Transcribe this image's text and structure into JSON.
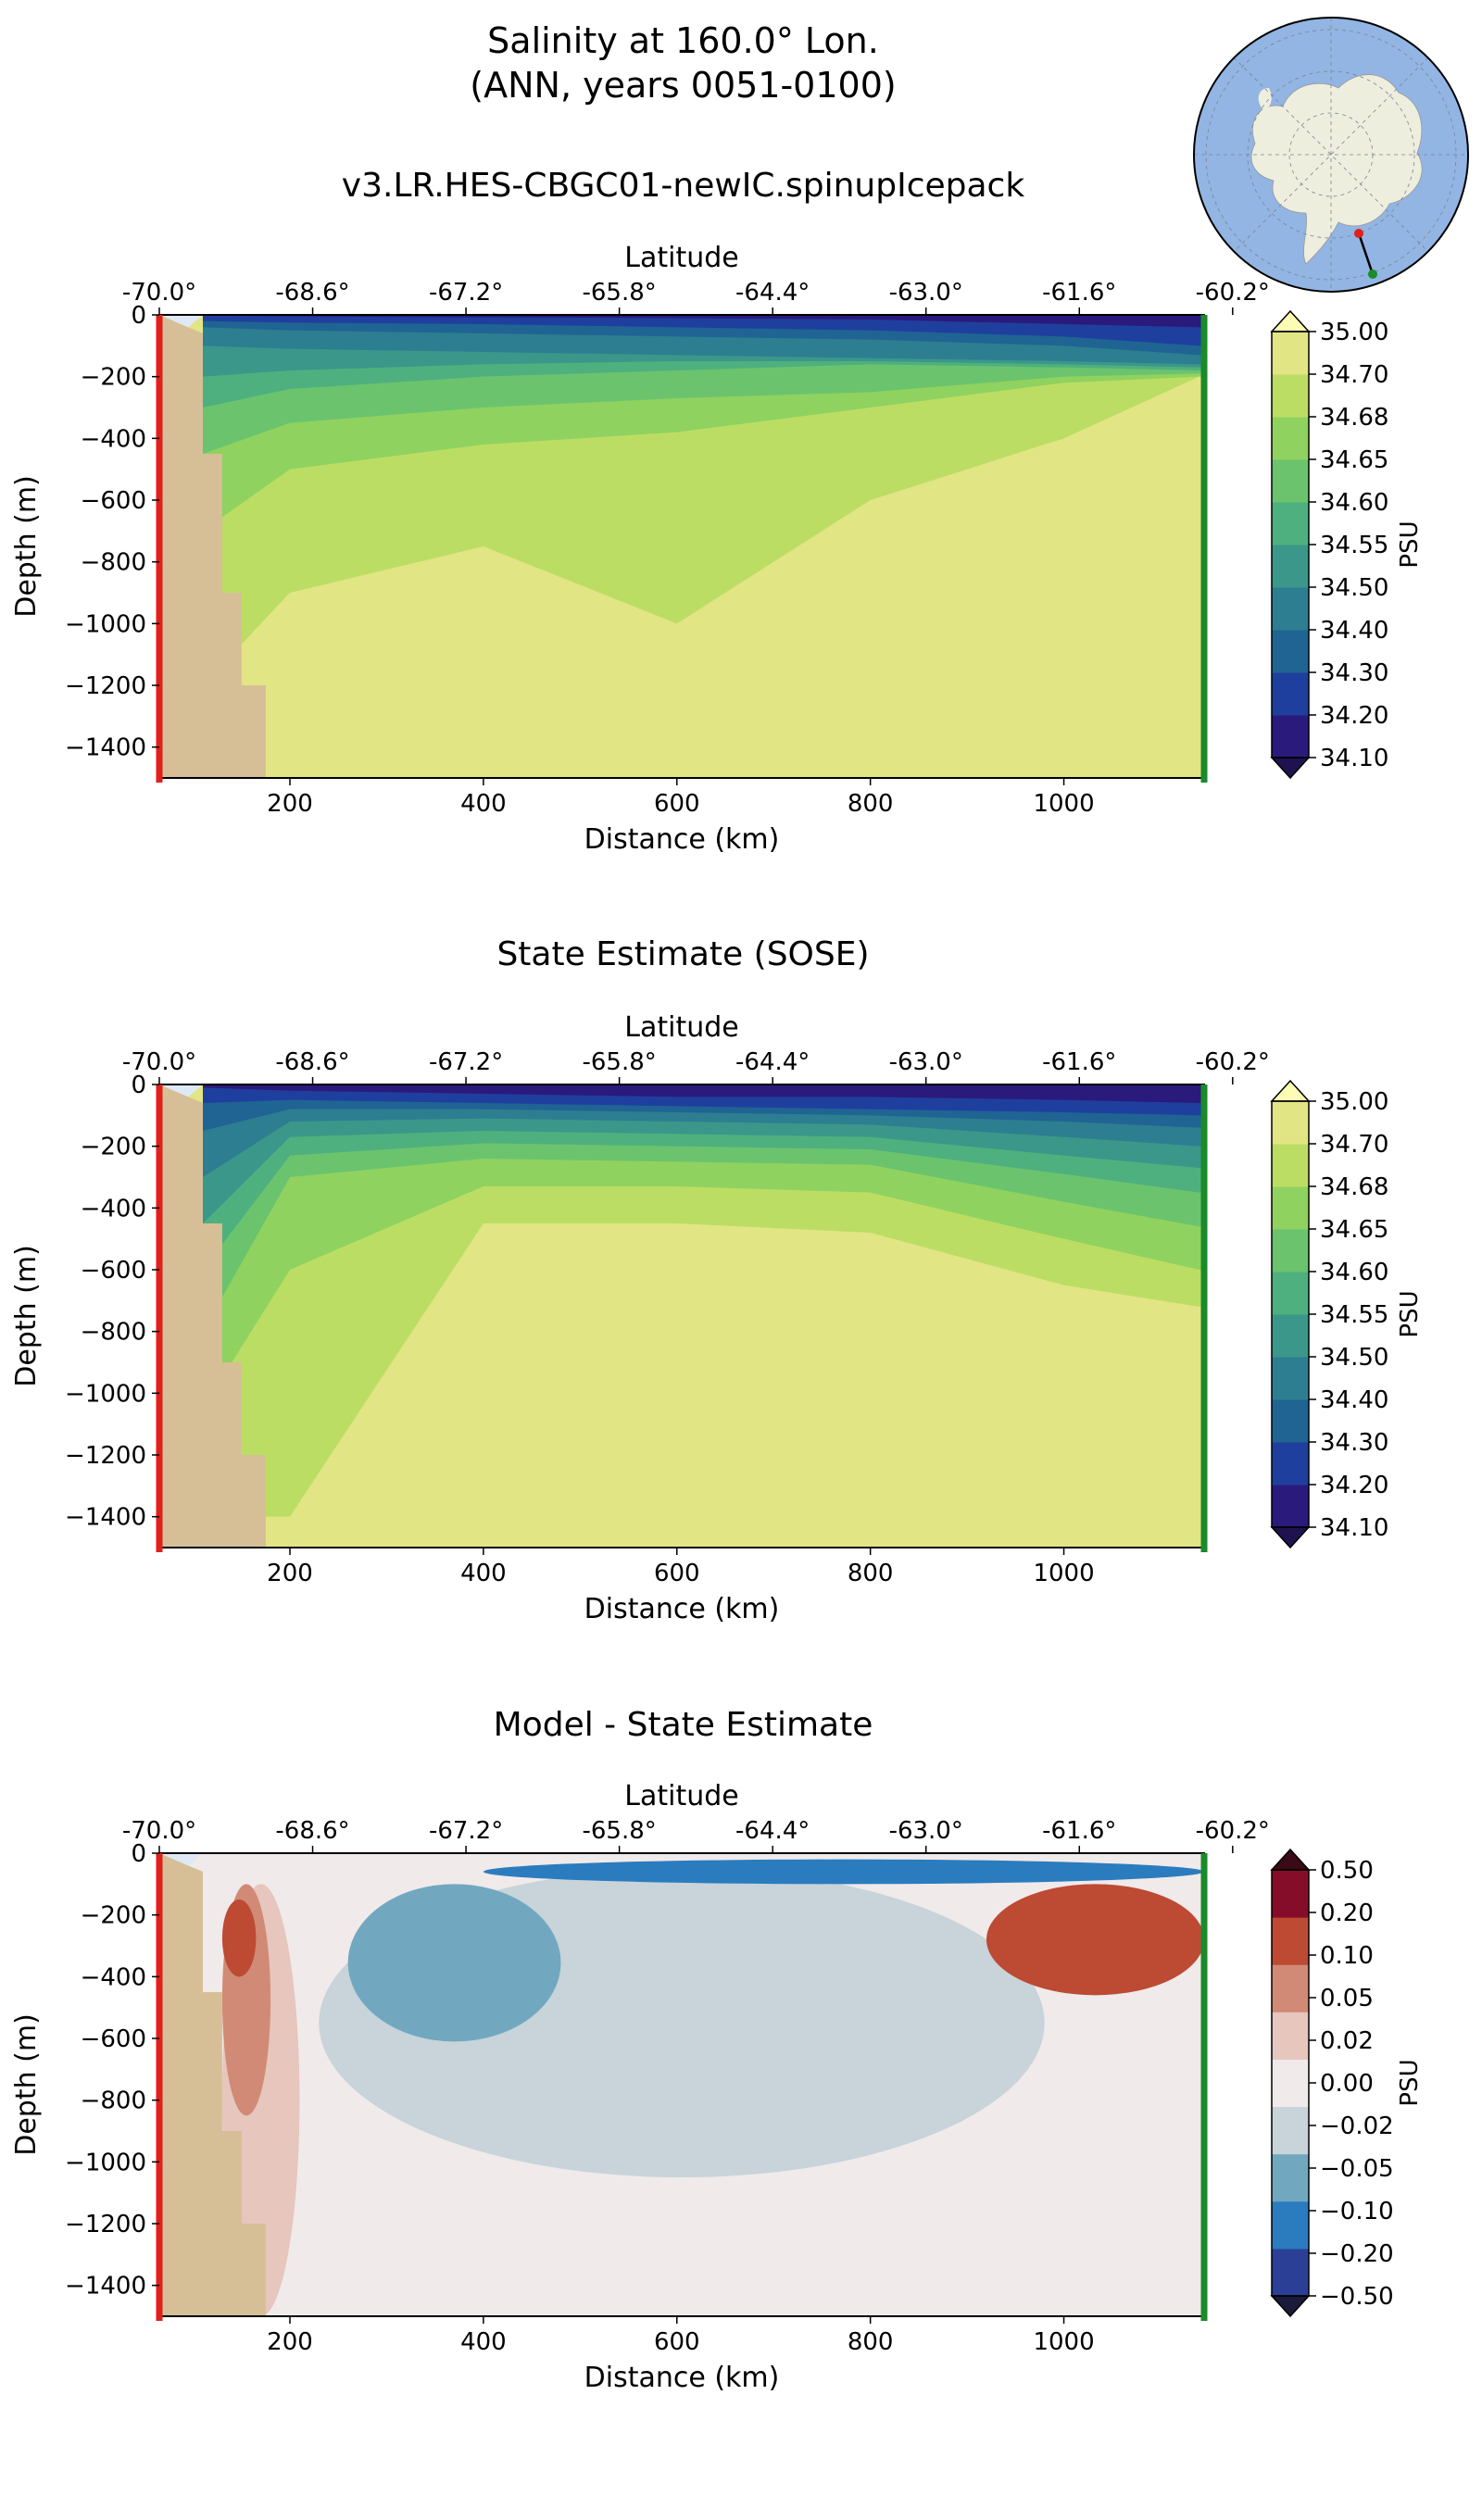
{
  "figure": {
    "title_line1": "Salinity at 160.0° Lon.",
    "title_line2": "(ANN, years 0051-0100)",
    "run_name": "v3.LR.HES-CBGC01-newIC.spinupIcepack"
  },
  "chart_data": [
    {
      "type": "heatmap",
      "title": "v3.LR.HES-CBGC01-newIC.spinupIcepack",
      "xlabel": "Distance (km)",
      "ylabel": "Depth (m)",
      "top_axis_label": "Latitude",
      "xlim": [
        65,
        1145
      ],
      "ylim": [
        -1500,
        0
      ],
      "x_ticks": [
        "200",
        "400",
        "600",
        "800",
        "1000"
      ],
      "y_ticks": [
        "0",
        "−200",
        "−400",
        "−600",
        "−800",
        "−1000",
        "−1200",
        "−1400"
      ],
      "lat_ticks": [
        "-70.0°",
        "-68.6°",
        "-67.2°",
        "-65.8°",
        "-64.4°",
        "-63.0°",
        "-61.6°",
        "-60.2°"
      ],
      "colorbar_label": "PSU",
      "colorbar_ticks": [
        "34.10",
        "34.20",
        "34.30",
        "34.40",
        "34.50",
        "34.55",
        "34.60",
        "34.65",
        "34.68",
        "34.70",
        "35.00"
      ],
      "colorbar_extend": "both",
      "colors": [
        "#2a1a7c",
        "#1f3f9e",
        "#1f6493",
        "#2d7e90",
        "#3b978a",
        "#4eb07e",
        "#6bc36e",
        "#8fd25f",
        "#bcdd64",
        "#e2e584"
      ],
      "profiles": [
        {
          "level": "34.10",
          "x": [
            110,
            200,
            400,
            600,
            800,
            1000,
            1140
          ],
          "depth": [
            -2,
            -5,
            -8,
            -10,
            -15,
            -30,
            -40
          ]
        },
        {
          "level": "34.20",
          "x": [
            110,
            200,
            400,
            600,
            800,
            1000,
            1140
          ],
          "depth": [
            -20,
            -25,
            -30,
            -40,
            -50,
            -70,
            -100
          ]
        },
        {
          "level": "34.30",
          "x": [
            110,
            200,
            400,
            600,
            800,
            1000,
            1140
          ],
          "depth": [
            -40,
            -50,
            -60,
            -70,
            -80,
            -100,
            -130
          ]
        },
        {
          "level": "34.40",
          "x": [
            110,
            200,
            400,
            600,
            800,
            1000,
            1140
          ],
          "depth": [
            -100,
            -110,
            -120,
            -130,
            -140,
            -150,
            -160
          ]
        },
        {
          "level": "34.50",
          "x": [
            110,
            200,
            400,
            600,
            800,
            1000,
            1140
          ],
          "depth": [
            -200,
            -180,
            -160,
            -150,
            -150,
            -160,
            -170
          ]
        },
        {
          "level": "34.55",
          "x": [
            110,
            200,
            400,
            600,
            800,
            1000,
            1140
          ],
          "depth": [
            -300,
            -240,
            -200,
            -180,
            -160,
            -170,
            -180
          ]
        },
        {
          "level": "34.60",
          "x": [
            110,
            200,
            400,
            600,
            800,
            1000,
            1140
          ],
          "depth": [
            -450,
            -350,
            -300,
            -270,
            -250,
            -200,
            -190
          ]
        },
        {
          "level": "34.65",
          "x": [
            110,
            200,
            400,
            600,
            800,
            1000,
            1140
          ],
          "depth": [
            -700,
            -500,
            -420,
            -380,
            -300,
            -220,
            -200
          ]
        },
        {
          "level": "34.68",
          "x": [
            110,
            200,
            400,
            600,
            800,
            1000,
            1140
          ],
          "depth": [
            -1200,
            -900,
            -750,
            -1000,
            -600,
            -400,
            -200
          ]
        }
      ]
    },
    {
      "type": "heatmap",
      "title": "State Estimate (SOSE)",
      "xlabel": "Distance (km)",
      "ylabel": "Depth (m)",
      "top_axis_label": "Latitude",
      "xlim": [
        65,
        1145
      ],
      "ylim": [
        -1500,
        0
      ],
      "x_ticks": [
        "200",
        "400",
        "600",
        "800",
        "1000"
      ],
      "y_ticks": [
        "0",
        "−200",
        "−400",
        "−600",
        "−800",
        "−1000",
        "−1200",
        "−1400"
      ],
      "lat_ticks": [
        "-70.0°",
        "-68.6°",
        "-67.2°",
        "-65.8°",
        "-64.4°",
        "-63.0°",
        "-61.6°",
        "-60.2°"
      ],
      "colorbar_label": "PSU",
      "colorbar_ticks": [
        "34.10",
        "34.20",
        "34.30",
        "34.40",
        "34.50",
        "34.55",
        "34.60",
        "34.65",
        "34.68",
        "34.70",
        "35.00"
      ],
      "colorbar_extend": "both",
      "colors": [
        "#2a1a7c",
        "#1f3f9e",
        "#1f6493",
        "#2d7e90",
        "#3b978a",
        "#4eb07e",
        "#6bc36e",
        "#8fd25f",
        "#bcdd64",
        "#e2e584"
      ],
      "profiles": [
        {
          "level": "34.10",
          "x": [
            110,
            200,
            400,
            600,
            800,
            1000,
            1140
          ],
          "depth": [
            -10,
            -20,
            -30,
            -40,
            -40,
            -50,
            -60
          ]
        },
        {
          "level": "34.20",
          "x": [
            110,
            200,
            400,
            600,
            800,
            1000,
            1140
          ],
          "depth": [
            -60,
            -50,
            -60,
            -70,
            -80,
            -90,
            -100
          ]
        },
        {
          "level": "34.30",
          "x": [
            110,
            200,
            400,
            600,
            800,
            1000,
            1140
          ],
          "depth": [
            -150,
            -80,
            -80,
            -90,
            -100,
            -120,
            -140
          ]
        },
        {
          "level": "34.40",
          "x": [
            110,
            200,
            400,
            600,
            800,
            1000,
            1140
          ],
          "depth": [
            -300,
            -120,
            -110,
            -120,
            -130,
            -170,
            -200
          ]
        },
        {
          "level": "34.50",
          "x": [
            110,
            200,
            400,
            600,
            800,
            1000,
            1140
          ],
          "depth": [
            -450,
            -170,
            -150,
            -160,
            -170,
            -230,
            -270
          ]
        },
        {
          "level": "34.55",
          "x": [
            110,
            200,
            400,
            600,
            800,
            1000,
            1140
          ],
          "depth": [
            -600,
            -230,
            -190,
            -200,
            -210,
            -290,
            -350
          ]
        },
        {
          "level": "34.60",
          "x": [
            110,
            200,
            400,
            600,
            800,
            1000,
            1140
          ],
          "depth": [
            -800,
            -300,
            -240,
            -250,
            -260,
            -380,
            -460
          ]
        },
        {
          "level": "34.65",
          "x": [
            110,
            200,
            400,
            600,
            800,
            1000,
            1140
          ],
          "depth": [
            -1050,
            -600,
            -330,
            -330,
            -350,
            -500,
            -600
          ]
        },
        {
          "level": "34.68",
          "x": [
            110,
            200,
            400,
            600,
            800,
            1000,
            1140
          ],
          "depth": [
            -1400,
            -1400,
            -450,
            -450,
            -480,
            -650,
            -720
          ]
        }
      ]
    },
    {
      "type": "heatmap",
      "title": "Model - State Estimate",
      "xlabel": "Distance (km)",
      "ylabel": "Depth (m)",
      "top_axis_label": "Latitude",
      "xlim": [
        65,
        1145
      ],
      "ylim": [
        -1500,
        0
      ],
      "x_ticks": [
        "200",
        "400",
        "600",
        "800",
        "1000"
      ],
      "y_ticks": [
        "0",
        "−200",
        "−400",
        "−600",
        "−800",
        "−1000",
        "−1200",
        "−1400"
      ],
      "lat_ticks": [
        "-70.0°",
        "-68.6°",
        "-67.2°",
        "-65.8°",
        "-64.4°",
        "-63.0°",
        "-61.6°",
        "-60.2°"
      ],
      "colorbar_label": "PSU",
      "colorbar_ticks": [
        "0.50",
        "0.20",
        "0.10",
        "0.05",
        "0.02",
        "0.00",
        "−0.02",
        "−0.05",
        "−0.10",
        "−0.20",
        "−0.50"
      ],
      "colorbar_extend": "both",
      "colors": [
        "#2b3f96",
        "#2a7cbf",
        "#71a8c0",
        "#c8d3da",
        "#f0eaea",
        "#e6c6bd",
        "#d18a76",
        "#bd4a33",
        "#860d2a"
      ],
      "regions": [
        {
          "value": "positive 0.02-0.05",
          "x": [
            130,
            210
          ],
          "depth": [
            -100,
            -1500
          ]
        },
        {
          "value": "positive 0.05-0.10",
          "x": [
            130,
            180
          ],
          "depth": [
            -100,
            -850
          ]
        },
        {
          "value": "positive 0.10-0.20",
          "x": [
            130,
            165
          ],
          "depth": [
            -150,
            -400
          ]
        },
        {
          "value": "negative −0.02 to −0.05",
          "x": [
            230,
            980
          ],
          "depth": [
            -50,
            -1050
          ]
        },
        {
          "value": "negative −0.05 to −0.10",
          "x": [
            260,
            480
          ],
          "depth": [
            -100,
            -610
          ]
        },
        {
          "value": "positive 0.10-0.20",
          "x": [
            920,
            1145
          ],
          "depth": [
            -100,
            -460
          ]
        },
        {
          "value": "negative −0.10 to −0.50",
          "x": [
            400,
            1145
          ],
          "depth": [
            -20,
            -100
          ]
        }
      ]
    }
  ],
  "inset_map": {
    "description_icon": "south-polar-stereographic-map-icon",
    "land_color": "#eeeedf",
    "ocean_color": "#92b5e3",
    "start_marker_color": "#e0201b",
    "end_marker_color": "#1a8a2a"
  }
}
